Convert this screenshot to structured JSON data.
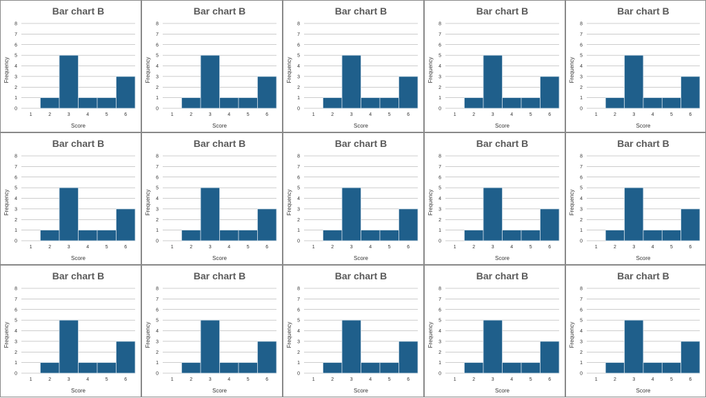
{
  "layout": {
    "rows": 3,
    "cols": 5
  },
  "colors": {
    "bar": "#1f5f8b",
    "bar_edge": "#cfdde8",
    "grid": "#9a9a9a",
    "title": "#5a5a5a",
    "text": "#333333"
  },
  "chart_data": {
    "type": "bar",
    "title": "Bar chart B",
    "xlabel": "Score",
    "ylabel": "Frequency",
    "categories": [
      "1",
      "2",
      "3",
      "4",
      "5",
      "6"
    ],
    "values": [
      0,
      1,
      5,
      1,
      1,
      3
    ],
    "yticks": [
      "0",
      "1",
      "2",
      "3",
      "4",
      "5",
      "6",
      "7",
      "8"
    ],
    "ylim": [
      0,
      8
    ],
    "grid": true,
    "panel_count": 15
  }
}
